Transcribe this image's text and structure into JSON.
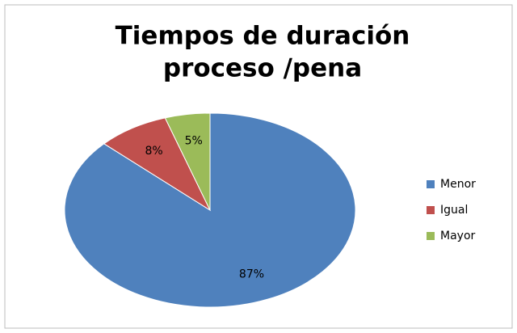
{
  "chart_data": {
    "type": "pie",
    "title": [
      "Tiempos de duración",
      "proceso /pena"
    ],
    "categories": [
      "Menor",
      "Igual",
      "Mayor"
    ],
    "values": [
      87,
      8,
      5
    ],
    "value_labels": [
      "87%",
      "8%",
      "5%"
    ],
    "colors": [
      "#4f81bd",
      "#c0504d",
      "#9bbb59"
    ],
    "legend": "right"
  }
}
